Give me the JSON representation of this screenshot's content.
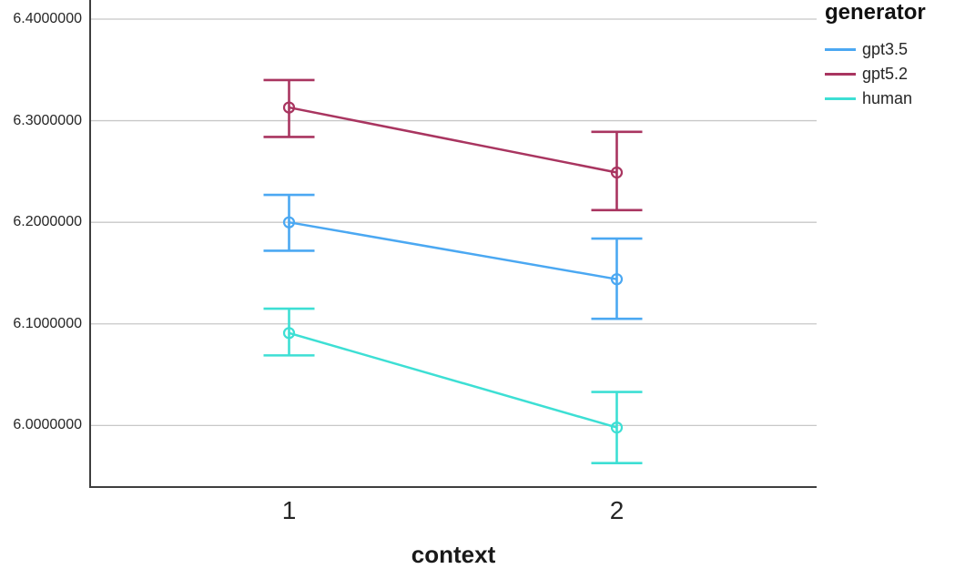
{
  "chart_data": {
    "type": "line",
    "title": "",
    "xlabel": "context",
    "ylabel": "",
    "legend_title": "generator",
    "legend_position": "right-top",
    "grid": true,
    "categories": [
      "1",
      "2"
    ],
    "yticks": [
      "6.4000000",
      "6.3000000",
      "6.2000000",
      "6.1000000",
      "6.0000000"
    ],
    "ytick_values": [
      6.4,
      6.3,
      6.2,
      6.1,
      6.0
    ],
    "ylim": [
      5.9394,
      6.4188
    ],
    "series": [
      {
        "name": "gpt3.5",
        "color": "#4BA8F2",
        "means": [
          6.2,
          6.144
        ],
        "ci_low": [
          6.172,
          6.105
        ],
        "ci_high": [
          6.227,
          6.184
        ]
      },
      {
        "name": "gpt5.2",
        "color": "#A93560",
        "means": [
          6.313,
          6.249
        ],
        "ci_low": [
          6.284,
          6.212
        ],
        "ci_high": [
          6.34,
          6.289
        ]
      },
      {
        "name": "human",
        "color": "#3DDFD4",
        "means": [
          6.091,
          5.998
        ],
        "ci_low": [
          6.069,
          5.963
        ],
        "ci_high": [
          6.115,
          6.033
        ]
      }
    ],
    "colors": {
      "gridline": "#C8C8C8",
      "axis": "#3E3E3E",
      "text": "#262626"
    }
  }
}
